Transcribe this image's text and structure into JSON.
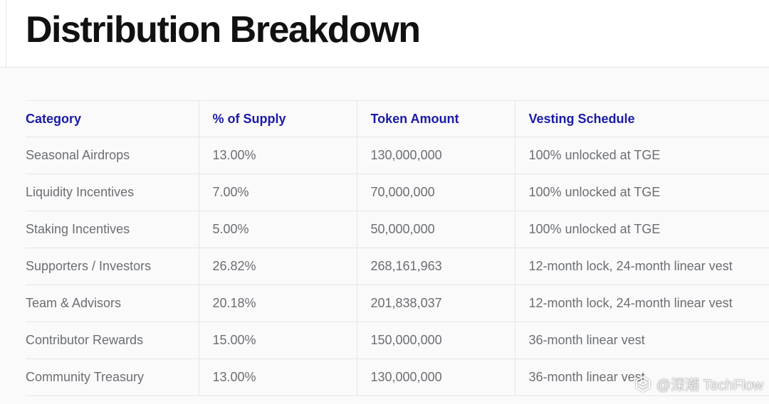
{
  "page": {
    "title": "Distribution Breakdown"
  },
  "table": {
    "columns": [
      "Category",
      "% of Supply",
      "Token Amount",
      "Vesting Schedule"
    ],
    "rows": [
      [
        "Seasonal Airdrops",
        "13.00%",
        "130,000,000",
        "100% unlocked at TGE"
      ],
      [
        "Liquidity Incentives",
        "7.00%",
        "70,000,000",
        "100% unlocked at TGE"
      ],
      [
        "Staking Incentives",
        "5.00%",
        "50,000,000",
        "100% unlocked at TGE"
      ],
      [
        "Supporters / Investors",
        "26.82%",
        "268,161,963",
        "12-month lock, 24-month linear vest"
      ],
      [
        "Team & Advisors",
        "20.18%",
        "201,838,037",
        "12-month lock, 24-month linear vest"
      ],
      [
        "Contributor Rewards",
        "15.00%",
        "150,000,000",
        "36-month linear vest"
      ],
      [
        "Community Treasury",
        "13.00%",
        "130,000,000",
        "36-month linear vest"
      ]
    ]
  },
  "watermark": {
    "text": "@深潮 TechFlow",
    "icon": "techflow-logo-icon"
  },
  "colors": {
    "header_text": "#1a1aa8",
    "body_text": "#6b6e73",
    "title_text": "#111111"
  }
}
